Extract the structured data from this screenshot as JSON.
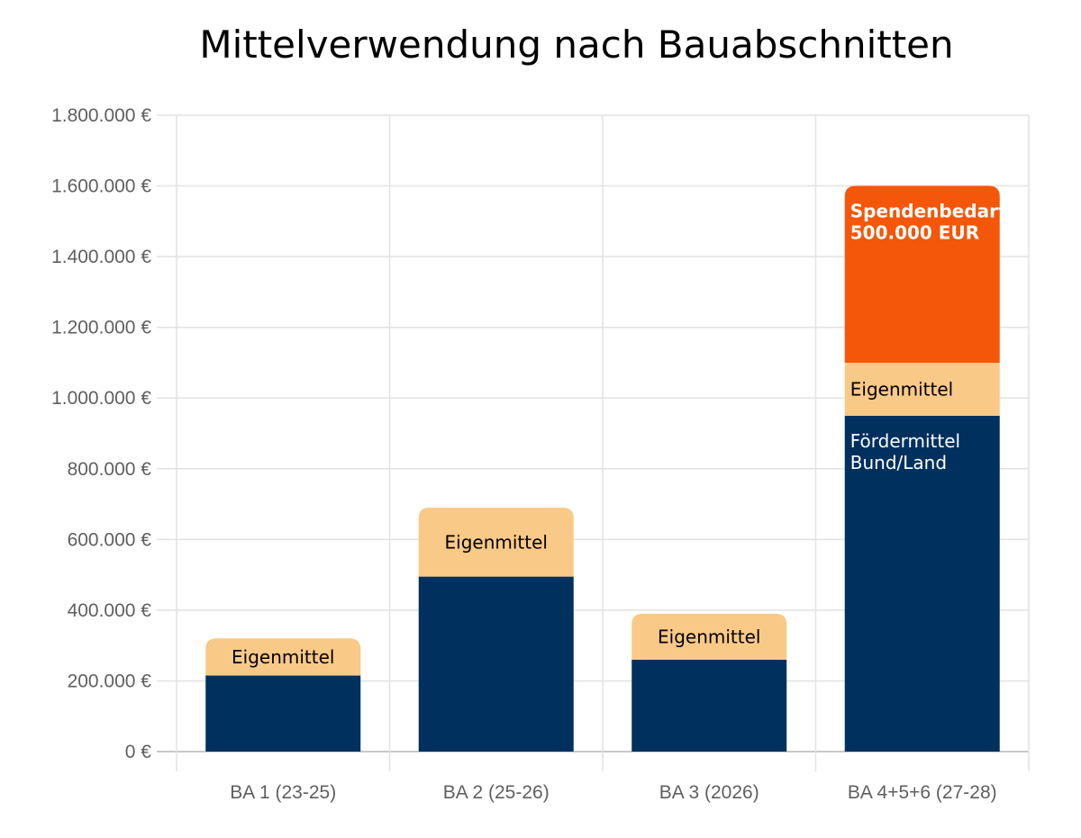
{
  "chart_data": {
    "type": "bar",
    "stacked": true,
    "title": "Mittelverwendung nach Bauabschnitten",
    "categories": [
      "BA 1 (23-25)",
      "BA 2 (25-26)",
      "BA 3 (2026)",
      "BA 4+5+6 (27-28)"
    ],
    "series": [
      {
        "key": "foerder",
        "color": "#00305e",
        "values": [
          215000,
          495000,
          260000,
          950000
        ]
      },
      {
        "key": "eigen",
        "color": "#f9c987",
        "values": [
          105000,
          195000,
          130000,
          150000
        ]
      },
      {
        "key": "spenden",
        "color": "#f4570a",
        "values": [
          0,
          0,
          0,
          500000
        ]
      }
    ],
    "ylim": [
      0,
      1800000
    ],
    "yticks": [
      0,
      200000,
      400000,
      600000,
      800000,
      1000000,
      1200000,
      1400000,
      1600000,
      1800000
    ],
    "ytick_labels": [
      "0 €",
      "200.000 €",
      "400.000 €",
      "600.000 €",
      "800.000 €",
      "1.000.000 €",
      "1.200.000 €",
      "1.400.000 €",
      "1.600.000 €",
      "1.800.000 €"
    ],
    "grid": true,
    "annotations": [
      {
        "category": 0,
        "series": "eigen",
        "lines": [
          "Eigenmittel"
        ],
        "color": "#000000"
      },
      {
        "category": 1,
        "series": "eigen",
        "lines": [
          "Eigenmittel"
        ],
        "color": "#000000"
      },
      {
        "category": 2,
        "series": "eigen",
        "lines": [
          "Eigenmittel"
        ],
        "color": "#000000"
      },
      {
        "category": 3,
        "series": "eigen",
        "lines": [
          "Eigenmittel"
        ],
        "color": "#000000"
      },
      {
        "category": 3,
        "series": "foerder",
        "lines": [
          "Fördermittel",
          "Bund/Land"
        ],
        "color": "#ffffff"
      },
      {
        "category": 3,
        "series": "spenden",
        "lines": [
          "Spendenbedarf",
          "500.000 EUR"
        ],
        "color": "#ffffff",
        "bold": true
      }
    ]
  }
}
